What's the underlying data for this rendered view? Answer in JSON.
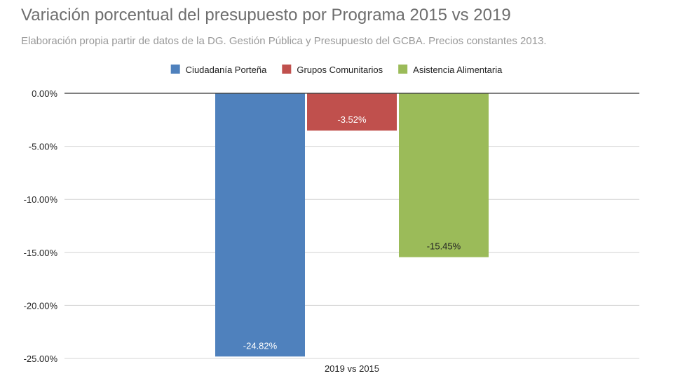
{
  "chart_data": {
    "type": "bar",
    "title": "Variación porcentual del presupuesto por Programa 2015 vs 2019",
    "subtitle": "Elaboración propia partir de datos de la DG. Gestión Pública y Presupuesto del GCBA. Precios constantes 2013.",
    "categories": [
      "2019 vs 2015"
    ],
    "series": [
      {
        "name": "Ciudadanía Porteña",
        "values": [
          -24.82
        ],
        "color": "#4f81bd",
        "label": "-24.82%",
        "label_color": "#ffffff"
      },
      {
        "name": "Grupos Comunitarios",
        "values": [
          -3.52
        ],
        "color": "#c0504d",
        "label": "-3.52%",
        "label_color": "#ffffff"
      },
      {
        "name": "Asistencia Alimentaria",
        "values": [
          -15.45
        ],
        "color": "#9bbb59",
        "label": "-15.45%",
        "label_color": "#222222"
      }
    ],
    "ylim": [
      -25,
      0
    ],
    "yticks": [
      0,
      -5,
      -10,
      -15,
      -20,
      -25
    ],
    "ytick_labels": [
      "0.00%",
      "-5.00%",
      "-10.00%",
      "-15.00%",
      "-20.00%",
      "-25.00%"
    ],
    "xlabel": "",
    "ylabel": "",
    "grid": true,
    "legend_position": "top"
  }
}
